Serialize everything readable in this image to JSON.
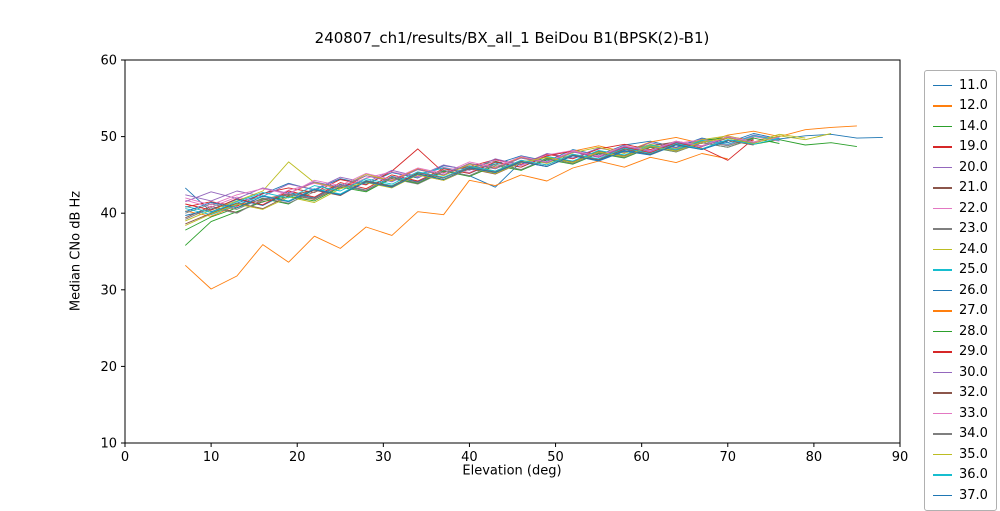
{
  "chart_data": {
    "type": "line",
    "title": "240807_ch1/results/BX_all_1 BeiDou B1(BPSK(2)-B1)",
    "xlabel": "Elevation (deg)",
    "ylabel": "Median CNo dB Hz",
    "xlim": [
      0,
      90
    ],
    "ylim": [
      10,
      60
    ],
    "xticks": [
      0,
      10,
      20,
      30,
      40,
      50,
      60,
      70,
      80,
      90
    ],
    "yticks": [
      10,
      20,
      30,
      40,
      50,
      60
    ],
    "grid": false,
    "legend_position": "right-outside",
    "x": [
      7,
      10,
      13,
      16,
      19,
      22,
      25,
      28,
      31,
      34,
      37,
      40,
      43,
      46,
      49,
      52,
      55,
      58,
      61,
      64,
      67,
      70,
      73,
      76,
      79,
      82,
      85,
      88
    ],
    "series": [
      {
        "name": "11.0",
        "color": "#1f77b4",
        "values": [
          43.3,
          40.2,
          41.3,
          42.5,
          43.9,
          43.0,
          44.5,
          43.8,
          45.3,
          44.6,
          46.2,
          45.7,
          46.4,
          47.5,
          46.8,
          48.3,
          47.6,
          48.9,
          49.4,
          48.6,
          49.8,
          49.2,
          50.4,
          49.7,
          50.1,
          50.3,
          49.8,
          49.9
        ]
      },
      {
        "name": "12.0",
        "color": "#ff7f0e",
        "values": [
          40.3,
          39.6,
          41.0,
          41.8,
          42.6,
          44.0,
          43.2,
          44.9,
          44.3,
          45.8,
          45.0,
          46.5,
          45.9,
          47.3,
          46.6,
          48.1,
          48.8,
          48.0,
          49.3,
          49.9,
          49.1,
          50.2,
          50.7,
          50.0,
          50.9,
          51.2,
          51.4
        ]
      },
      {
        "name": "14.0",
        "color": "#2ca02c",
        "values": [
          37.8,
          39.5,
          40.7,
          41.9,
          41.2,
          43.1,
          42.4,
          44.2,
          43.6,
          45.2,
          44.4,
          45.9,
          46.8,
          45.6,
          47.2,
          46.5,
          48.0,
          47.4,
          48.8,
          48.2,
          49.5,
          49.9,
          49.0,
          49.6,
          48.9,
          49.2,
          48.7
        ]
      },
      {
        "name": "19.0",
        "color": "#d62728",
        "values": [
          40.8,
          41.5,
          40.9,
          42.6,
          43.3,
          42.7,
          44.4,
          43.7,
          45.5,
          48.4,
          45.3,
          46.1,
          47.0,
          46.4,
          47.7,
          47.1,
          48.4,
          49.0,
          48.3,
          49.4,
          48.8,
          50.0,
          49.5
        ]
      },
      {
        "name": "20.0",
        "color": "#9467bd",
        "values": [
          42.4,
          41.6,
          42.9,
          42.2,
          43.8,
          43.1,
          44.7,
          44.0,
          45.6,
          44.8,
          46.3,
          45.6,
          47.1,
          46.3,
          47.8,
          47.2,
          48.5,
          47.9,
          49.2,
          48.5,
          49.7,
          49.0,
          50.2,
          49.6
        ]
      },
      {
        "name": "21.0",
        "color": "#8c564b",
        "values": [
          39.4,
          40.9,
          40.1,
          41.7,
          42.4,
          41.8,
          43.5,
          44.1,
          43.4,
          45.0,
          44.3,
          45.8,
          45.1,
          46.6,
          47.4,
          46.7,
          48.1,
          47.5,
          48.8,
          49.3,
          48.7,
          49.8,
          49.3
        ]
      },
      {
        "name": "22.0",
        "color": "#e377c2",
        "values": [
          41.7,
          40.8,
          42.1,
          41.4,
          43.0,
          43.9,
          43.2,
          44.6,
          45.4,
          44.7,
          46.0,
          45.3,
          46.9,
          46.2,
          47.6,
          48.2,
          47.4,
          48.7,
          48.0,
          49.1,
          49.6,
          48.9,
          50.0,
          49.4
        ]
      },
      {
        "name": "23.0",
        "color": "#7f7f7f",
        "values": [
          40.0,
          41.2,
          40.5,
          42.0,
          41.3,
          42.8,
          43.6,
          42.9,
          44.5,
          43.8,
          45.4,
          46.2,
          45.5,
          46.9,
          46.3,
          47.7,
          47.0,
          48.3,
          48.9,
          48.2,
          49.4,
          48.8,
          49.9
        ]
      },
      {
        "name": "24.0",
        "color": "#bcbd22",
        "values": [
          39.0,
          40.4,
          41.6,
          42.9,
          46.7,
          44.0,
          43.3,
          45.1,
          44.2,
          45.7,
          44.9,
          46.4,
          45.8,
          47.2,
          46.5,
          47.9,
          48.6,
          47.8,
          49.0,
          48.4,
          49.6,
          50.1,
          49.3,
          50.3,
          49.8
        ]
      },
      {
        "name": "25.0",
        "color": "#17becf",
        "values": [
          40.6,
          39.8,
          41.1,
          42.3,
          41.6,
          43.2,
          42.5,
          44.3,
          43.6,
          45.1,
          45.9,
          45.2,
          46.6,
          46.0,
          47.4,
          46.8,
          48.2,
          47.6,
          48.9,
          48.3,
          49.5,
          49.0,
          50.1,
          49.5
        ]
      },
      {
        "name": "26.0",
        "color": "#1f77b4",
        "values": [
          39.7,
          40.5,
          41.8,
          41.0,
          42.7,
          42.0,
          43.8,
          43.0,
          44.8,
          44.1,
          45.6,
          44.9,
          43.4,
          46.7,
          46.1,
          47.5,
          46.9,
          48.2,
          47.7,
          49.0,
          48.4,
          49.6,
          49.1
        ]
      },
      {
        "name": "27.0",
        "color": "#ff7f0e",
        "values": [
          33.2,
          30.1,
          31.8,
          35.9,
          33.6,
          37.0,
          35.4,
          38.2,
          37.1,
          40.2,
          39.8,
          44.3,
          43.6,
          45.0,
          44.2,
          45.9,
          46.8,
          46.0,
          47.3,
          46.6,
          47.8,
          47.1
        ]
      },
      {
        "name": "28.0",
        "color": "#2ca02c",
        "values": [
          35.8,
          38.9,
          40.2,
          41.5,
          42.2,
          41.6,
          43.4,
          42.8,
          44.6,
          43.9,
          45.5,
          44.8,
          46.2,
          45.6,
          47.0,
          46.4,
          47.8,
          47.2,
          48.6,
          48.0,
          49.2,
          48.6,
          49.8,
          49.1
        ]
      },
      {
        "name": "29.0",
        "color": "#d62728",
        "values": [
          41.2,
          40.4,
          41.9,
          41.1,
          42.9,
          42.1,
          44.0,
          43.2,
          45.0,
          44.2,
          45.8,
          45.2,
          46.7,
          46.0,
          47.5,
          48.1,
          47.3,
          48.6,
          47.9,
          49.2,
          48.5,
          46.9,
          49.7
        ]
      },
      {
        "name": "30.0",
        "color": "#9467bd",
        "values": [
          41.5,
          42.8,
          41.9,
          43.3,
          42.6,
          44.1,
          43.4,
          44.9,
          44.1,
          45.7,
          45.0,
          46.5,
          45.8,
          47.2,
          46.6,
          48.0,
          47.3,
          48.7,
          48.1,
          49.3,
          48.7,
          49.9,
          49.2,
          50.0
        ]
      },
      {
        "name": "32.0",
        "color": "#8c564b",
        "values": [
          38.6,
          40.0,
          41.3,
          40.6,
          42.3,
          43.0,
          42.3,
          44.2,
          43.5,
          45.3,
          44.6,
          46.0,
          45.4,
          46.8,
          46.1,
          47.6,
          47.0,
          48.4,
          47.7,
          49.0,
          48.3,
          49.5,
          48.9
        ]
      },
      {
        "name": "33.0",
        "color": "#e377c2",
        "values": [
          42.0,
          41.1,
          42.4,
          43.2,
          42.5,
          44.3,
          43.6,
          45.2,
          44.4,
          45.9,
          45.2,
          46.7,
          46.0,
          47.4,
          46.7,
          48.1,
          47.5,
          48.8,
          48.2,
          49.4,
          48.8,
          50.0,
          49.3,
          49.9
        ]
      },
      {
        "name": "34.0",
        "color": "#7f7f7f",
        "values": [
          39.2,
          40.7,
          40.0,
          41.8,
          42.5,
          41.9,
          43.7,
          43.0,
          44.7,
          44.0,
          45.6,
          44.9,
          46.4,
          45.7,
          47.1,
          46.5,
          47.9,
          47.3,
          48.7,
          48.0,
          49.2,
          48.6,
          49.7
        ]
      },
      {
        "name": "35.0",
        "color": "#bcbd22",
        "values": [
          38.4,
          39.9,
          41.2,
          40.5,
          42.1,
          41.4,
          43.2,
          44.0,
          43.3,
          45.0,
          44.3,
          45.9,
          45.2,
          46.6,
          47.3,
          46.6,
          48.0,
          47.4,
          48.8,
          48.1,
          49.3,
          49.8,
          49.1,
          50.1,
          49.6,
          50.4
        ]
      },
      {
        "name": "36.0",
        "color": "#17becf",
        "values": [
          40.9,
          40.1,
          41.5,
          42.7,
          42.0,
          43.6,
          42.9,
          44.5,
          43.8,
          45.4,
          44.7,
          46.1,
          45.5,
          46.9,
          46.3,
          47.7,
          47.1,
          48.5,
          47.8,
          49.1,
          48.4,
          49.6,
          49.0,
          49.8
        ]
      },
      {
        "name": "37.0",
        "color": "#1f77b4",
        "values": [
          40.2,
          41.4,
          40.7,
          42.2,
          41.5,
          43.1,
          42.4,
          44.1,
          43.4,
          45.1,
          44.4,
          45.9,
          45.3,
          46.7,
          46.1,
          47.5,
          46.8,
          48.1,
          47.6,
          48.9,
          48.3,
          49.4
        ]
      }
    ]
  }
}
